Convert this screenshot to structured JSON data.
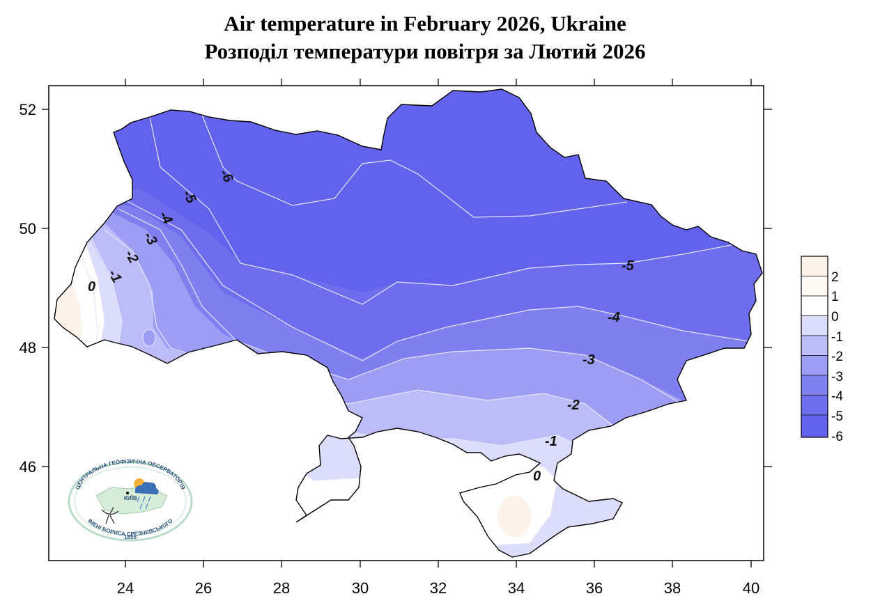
{
  "title_en": "Air temperature in February 2026, Ukraine",
  "title_ua": "Розподіл температури повітря за Лютий 2026",
  "chart_data": {
    "type": "heatmap",
    "x_ticks": [
      "24",
      "26",
      "28",
      "30",
      "32",
      "34",
      "36",
      "38",
      "40"
    ],
    "y_ticks": [
      "52",
      "50",
      "48",
      "46"
    ],
    "xlim": [
      22.2,
      40.2
    ],
    "ylim": [
      44.3,
      52.4
    ],
    "legend": {
      "labels": [
        "2",
        "1",
        "0",
        "-1",
        "-2",
        "-3",
        "-4",
        "-5",
        "-6"
      ],
      "colors": [
        "#fdf3ea",
        "#fdf8f3",
        "#ffffff",
        "#dcdcfb",
        "#bcbcf8",
        "#9d9df4",
        "#7f7ff0",
        "#6d6dee",
        "#6262ec"
      ],
      "placement": "right"
    },
    "isotherm_labels": [
      {
        "text": "-6",
        "lon": 26.4,
        "lat": 51.0
      },
      {
        "text": "-5",
        "lon": 25.5,
        "lat": 50.6
      },
      {
        "text": "-4",
        "lon": 24.8,
        "lat": 50.2
      },
      {
        "text": "-3",
        "lon": 24.5,
        "lat": 49.9
      },
      {
        "text": "-2",
        "lon": 24.0,
        "lat": 49.6
      },
      {
        "text": "-1",
        "lon": 23.6,
        "lat": 49.3
      },
      {
        "text": "0",
        "lon": 23.3,
        "lat": 48.9
      },
      {
        "text": "-5",
        "lon": 36.9,
        "lat": 49.4
      },
      {
        "text": "-4",
        "lon": 36.5,
        "lat": 48.5
      },
      {
        "text": "-3",
        "lon": 35.9,
        "lat": 47.9
      },
      {
        "text": "-2",
        "lon": 35.5,
        "lat": 47.0
      },
      {
        "text": "-1",
        "lon": 34.9,
        "lat": 46.4
      },
      {
        "text": "0",
        "lon": 34.5,
        "lat": 45.8
      }
    ]
  },
  "logo": {
    "top_text": "ЦЕНТРАЛЬНА ГЕОФІЗИЧНА ОБСЕРВАТОРІЯ",
    "bottom_text": "ІМЕНІ БОРИСА СРЕЗНЕВСЬКОГО",
    "year": "1855",
    "city": "КИЇВ"
  }
}
